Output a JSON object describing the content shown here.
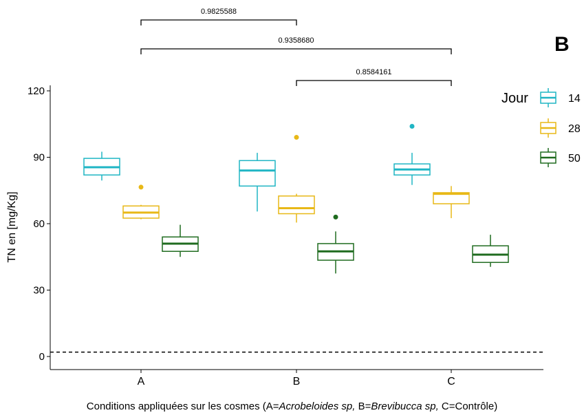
{
  "chart_data": {
    "type": "boxplot",
    "panel_label": "B",
    "ylabel": "TN en [mg/Kg]",
    "caption": {
      "prefix": "Conditions appliquées sur les cosmes (A=",
      "a_italic": "Acrobeloides sp,",
      "mid": " B=",
      "b_italic": "Brevibucca sp,",
      "suffix": " C=Contrôle)"
    },
    "ylim": [
      -6,
      122
    ],
    "y_ticks": [
      0,
      30,
      60,
      90,
      120
    ],
    "categories": [
      "A",
      "B",
      "C"
    ],
    "reference_line": {
      "y": 2,
      "style": "dashed"
    },
    "legend": {
      "title": "Jour",
      "position": "right"
    },
    "series": [
      {
        "name": "14",
        "color": "#1FB5C4",
        "boxes": [
          {
            "whisker_low": 79.5,
            "q1": 82,
            "median": 85.5,
            "q3": 89.5,
            "whisker_high": 92.5,
            "outliers": []
          },
          {
            "whisker_low": 65.5,
            "q1": 77,
            "median": 84,
            "q3": 88.5,
            "whisker_high": 92,
            "outliers": []
          },
          {
            "whisker_low": 77.5,
            "q1": 82,
            "median": 84.5,
            "q3": 87,
            "whisker_high": 92,
            "outliers": [
              104
            ]
          }
        ]
      },
      {
        "name": "28",
        "color": "#E8B817",
        "boxes": [
          {
            "whisker_low": 62,
            "q1": 62.5,
            "median": 65,
            "q3": 68,
            "whisker_high": 68.5,
            "outliers": [
              76.5
            ]
          },
          {
            "whisker_low": 60.5,
            "q1": 64.5,
            "median": 67,
            "q3": 72.5,
            "whisker_high": 73.5,
            "outliers": [
              99
            ]
          },
          {
            "whisker_low": 62.5,
            "q1": 69,
            "median": 73.5,
            "q3": 74,
            "whisker_high": 77,
            "outliers": []
          }
        ]
      },
      {
        "name": "50",
        "color": "#1F6B1F",
        "boxes": [
          {
            "whisker_low": 45,
            "q1": 47.5,
            "median": 51,
            "q3": 54,
            "whisker_high": 59.5,
            "outliers": []
          },
          {
            "whisker_low": 37.5,
            "q1": 43.5,
            "median": 47.5,
            "q3": 51,
            "whisker_high": 56.5,
            "outliers": [
              63
            ]
          },
          {
            "whisker_low": 40.5,
            "q1": 42.5,
            "median": 46,
            "q3": 50,
            "whisker_high": 55,
            "outliers": []
          }
        ]
      }
    ],
    "comparisons": [
      {
        "from": "A",
        "to": "B",
        "label": "0.9825588"
      },
      {
        "from": "A",
        "to": "C",
        "label": "0.9358680"
      },
      {
        "from": "B",
        "to": "C",
        "label": "0.8584161"
      }
    ]
  }
}
